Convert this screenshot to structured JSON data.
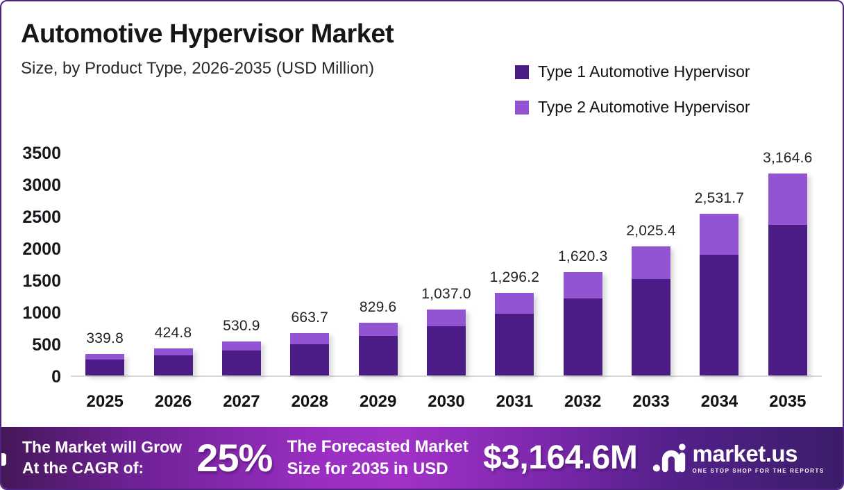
{
  "header": {
    "title": "Automotive Hypervisor Market",
    "subtitle": "Size, by Product Type, 2026-2035 (USD Million)"
  },
  "legend": {
    "items": [
      {
        "label": "Type 1 Automotive Hypervisor",
        "color": "#4b1c85"
      },
      {
        "label": "Type 2 Automotive Hypervisor",
        "color": "#9254d3"
      }
    ]
  },
  "chart_data": {
    "type": "bar",
    "stacked": true,
    "title": "Automotive Hypervisor Market Size, by Product Type, 2026-2035 (USD Million)",
    "categories": [
      "2025",
      "2026",
      "2027",
      "2028",
      "2029",
      "2030",
      "2031",
      "2032",
      "2033",
      "2034",
      "2035"
    ],
    "series": [
      {
        "name": "Type 1 Automotive Hypervisor",
        "color": "#4b1c85",
        "values": [
          253.2,
          316.5,
          395.5,
          494.5,
          618.1,
          772.6,
          965.7,
          1207.1,
          1508.9,
          1886.1,
          2357.6
        ]
      },
      {
        "name": "Type 2 Automotive Hypervisor",
        "color": "#9254d3",
        "values": [
          86.6,
          108.3,
          135.4,
          169.2,
          211.5,
          264.4,
          330.5,
          413.2,
          516.5,
          645.6,
          807.0
        ]
      }
    ],
    "totals": [
      339.8,
      424.8,
      530.9,
      663.7,
      829.6,
      1037.0,
      1296.2,
      1620.3,
      2025.4,
      2531.7,
      3164.6
    ],
    "total_labels": [
      "339.8",
      "424.8",
      "530.9",
      "663.7",
      "829.6",
      "1,037.0",
      "1,296.2",
      "1,620.3",
      "2,025.4",
      "2,531.7",
      "3,164.6"
    ],
    "yticks": [
      0,
      500,
      1000,
      1500,
      2000,
      2500,
      3000,
      3500
    ],
    "ylim": [
      0,
      3500
    ],
    "xlabel": "",
    "ylabel": "",
    "grid": false,
    "legend_position": "top-right"
  },
  "banner": {
    "cagr_line1": "The Market will Grow",
    "cagr_line2": "At the CAGR of:",
    "cagr_value": "25%",
    "forecast_line1": "The Forecasted Market",
    "forecast_line2": "Size for 2035 in USD",
    "forecast_value": "$3,164.6M",
    "brand_name": "market.us",
    "brand_tagline": "ONE STOP SHOP FOR THE REPORTS"
  }
}
